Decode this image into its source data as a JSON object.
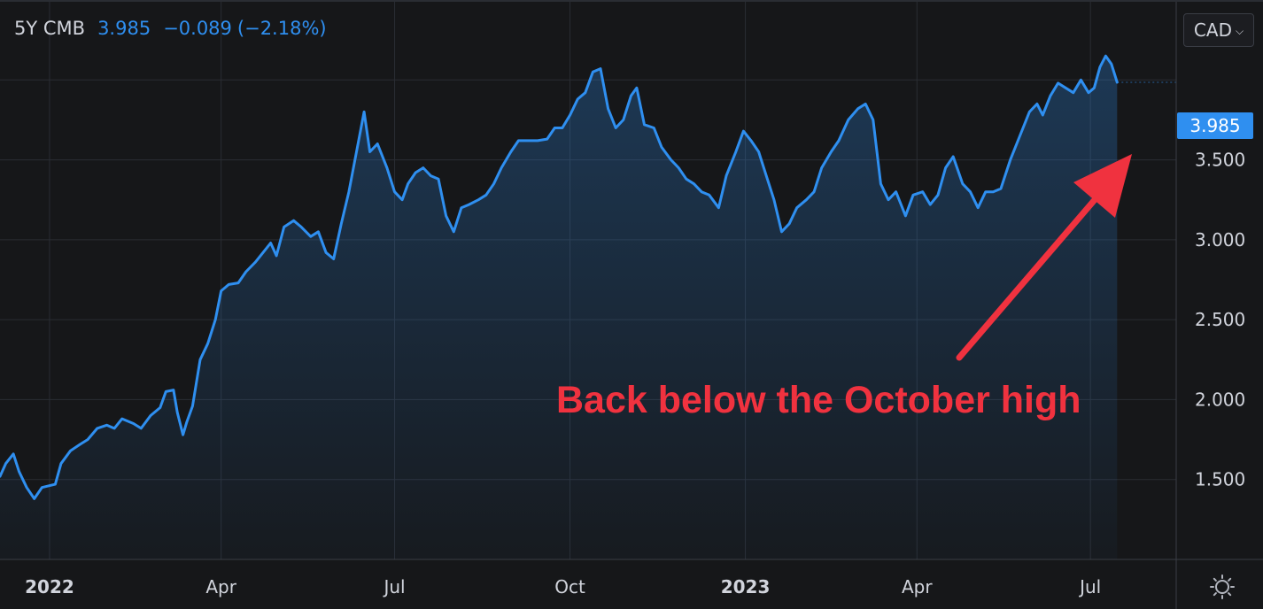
{
  "header": {
    "symbol": "5Y CMB",
    "last": "3.985",
    "change": "−0.089",
    "change_pct": "(−2.18%)"
  },
  "currency": {
    "label": "CAD",
    "chevron_icon": "chevron-down-icon"
  },
  "settings_icon": "sun-gear-icon",
  "price_tag": "3.985",
  "annotation": {
    "text": "Back below the October high",
    "color": "#f0323f"
  },
  "colors": {
    "line": "#2f8ff0",
    "background": "#161719",
    "grid": "#2a2d33",
    "text": "#d1d4dc"
  },
  "chart_data": {
    "type": "area",
    "title": "",
    "xlabel": "",
    "ylabel": "",
    "ylim": [
      1.0,
      4.5
    ],
    "xlim": [
      "2021-12-06",
      "2023-08-15"
    ],
    "grid": true,
    "x_ticks": [
      {
        "date": "2022-01-01",
        "label": "2022",
        "bold": true
      },
      {
        "date": "2022-04-01",
        "label": "Apr"
      },
      {
        "date": "2022-07-01",
        "label": "Jul"
      },
      {
        "date": "2022-10-01",
        "label": "Oct"
      },
      {
        "date": "2023-01-01",
        "label": "2023",
        "bold": true
      },
      {
        "date": "2023-04-01",
        "label": "Apr"
      },
      {
        "date": "2023-07-01",
        "label": "Jul"
      }
    ],
    "y_ticks": [
      {
        "value": 1.5,
        "label": "1.500"
      },
      {
        "value": 2.0,
        "label": "2.000"
      },
      {
        "value": 2.5,
        "label": "2.500"
      },
      {
        "value": 3.0,
        "label": "3.000"
      },
      {
        "value": 3.5,
        "label": "3.500"
      }
    ],
    "series": [
      {
        "name": "5Y CMB",
        "points": [
          [
            "2021-12-06",
            1.52
          ],
          [
            "2021-12-09",
            1.6
          ],
          [
            "2021-12-13",
            1.66
          ],
          [
            "2021-12-16",
            1.55
          ],
          [
            "2021-12-20",
            1.45
          ],
          [
            "2021-12-24",
            1.38
          ],
          [
            "2021-12-28",
            1.45
          ],
          [
            "2022-01-04",
            1.47
          ],
          [
            "2022-01-07",
            1.6
          ],
          [
            "2022-01-12",
            1.68
          ],
          [
            "2022-01-17",
            1.72
          ],
          [
            "2022-01-21",
            1.75
          ],
          [
            "2022-01-26",
            1.82
          ],
          [
            "2022-01-31",
            1.84
          ],
          [
            "2022-02-04",
            1.82
          ],
          [
            "2022-02-08",
            1.88
          ],
          [
            "2022-02-14",
            1.85
          ],
          [
            "2022-02-18",
            1.82
          ],
          [
            "2022-02-23",
            1.9
          ],
          [
            "2022-02-28",
            1.95
          ],
          [
            "2022-03-03",
            2.05
          ],
          [
            "2022-03-07",
            2.06
          ],
          [
            "2022-03-09",
            1.92
          ],
          [
            "2022-03-12",
            1.78
          ],
          [
            "2022-03-14",
            1.86
          ],
          [
            "2022-03-17",
            1.96
          ],
          [
            "2022-03-21",
            2.25
          ],
          [
            "2022-03-25",
            2.35
          ],
          [
            "2022-03-29",
            2.5
          ],
          [
            "2022-04-01",
            2.68
          ],
          [
            "2022-04-05",
            2.72
          ],
          [
            "2022-04-10",
            2.73
          ],
          [
            "2022-04-14",
            2.8
          ],
          [
            "2022-04-19",
            2.86
          ],
          [
            "2022-04-23",
            2.92
          ],
          [
            "2022-04-27",
            2.98
          ],
          [
            "2022-04-30",
            2.9
          ],
          [
            "2022-05-04",
            3.08
          ],
          [
            "2022-05-09",
            3.12
          ],
          [
            "2022-05-13",
            3.08
          ],
          [
            "2022-05-18",
            3.02
          ],
          [
            "2022-05-22",
            3.05
          ],
          [
            "2022-05-26",
            2.92
          ],
          [
            "2022-05-30",
            2.88
          ],
          [
            "2022-06-03",
            3.1
          ],
          [
            "2022-06-07",
            3.3
          ],
          [
            "2022-06-11",
            3.55
          ],
          [
            "2022-06-15",
            3.8
          ],
          [
            "2022-06-18",
            3.55
          ],
          [
            "2022-06-22",
            3.6
          ],
          [
            "2022-06-27",
            3.45
          ],
          [
            "2022-07-01",
            3.3
          ],
          [
            "2022-07-05",
            3.25
          ],
          [
            "2022-07-08",
            3.35
          ],
          [
            "2022-07-12",
            3.42
          ],
          [
            "2022-07-16",
            3.45
          ],
          [
            "2022-07-20",
            3.4
          ],
          [
            "2022-07-24",
            3.38
          ],
          [
            "2022-07-28",
            3.15
          ],
          [
            "2022-08-01",
            3.05
          ],
          [
            "2022-08-05",
            3.2
          ],
          [
            "2022-08-09",
            3.22
          ],
          [
            "2022-08-14",
            3.25
          ],
          [
            "2022-08-18",
            3.28
          ],
          [
            "2022-08-22",
            3.35
          ],
          [
            "2022-08-26",
            3.45
          ],
          [
            "2022-08-31",
            3.55
          ],
          [
            "2022-09-04",
            3.62
          ],
          [
            "2022-09-09",
            3.62
          ],
          [
            "2022-09-14",
            3.62
          ],
          [
            "2022-09-19",
            3.63
          ],
          [
            "2022-09-23",
            3.7
          ],
          [
            "2022-09-27",
            3.7
          ],
          [
            "2022-10-01",
            3.78
          ],
          [
            "2022-10-05",
            3.88
          ],
          [
            "2022-10-09",
            3.92
          ],
          [
            "2022-10-13",
            4.05
          ],
          [
            "2022-10-17",
            4.07
          ],
          [
            "2022-10-21",
            3.82
          ],
          [
            "2022-10-25",
            3.7
          ],
          [
            "2022-10-29",
            3.75
          ],
          [
            "2022-11-02",
            3.9
          ],
          [
            "2022-11-05",
            3.95
          ],
          [
            "2022-11-09",
            3.72
          ],
          [
            "2022-11-14",
            3.7
          ],
          [
            "2022-11-18",
            3.58
          ],
          [
            "2022-11-23",
            3.5
          ],
          [
            "2022-11-27",
            3.45
          ],
          [
            "2022-12-01",
            3.38
          ],
          [
            "2022-12-05",
            3.35
          ],
          [
            "2022-12-09",
            3.3
          ],
          [
            "2022-12-13",
            3.28
          ],
          [
            "2022-12-18",
            3.2
          ],
          [
            "2022-12-22",
            3.4
          ],
          [
            "2022-12-27",
            3.55
          ],
          [
            "2022-12-31",
            3.68
          ],
          [
            "2023-01-04",
            3.62
          ],
          [
            "2023-01-08",
            3.55
          ],
          [
            "2023-01-12",
            3.4
          ],
          [
            "2023-01-16",
            3.25
          ],
          [
            "2023-01-20",
            3.05
          ],
          [
            "2023-01-24",
            3.1
          ],
          [
            "2023-01-28",
            3.2
          ],
          [
            "2023-02-02",
            3.25
          ],
          [
            "2023-02-06",
            3.3
          ],
          [
            "2023-02-10",
            3.45
          ],
          [
            "2023-02-15",
            3.55
          ],
          [
            "2023-02-19",
            3.62
          ],
          [
            "2023-02-24",
            3.75
          ],
          [
            "2023-03-01",
            3.82
          ],
          [
            "2023-03-05",
            3.85
          ],
          [
            "2023-03-09",
            3.75
          ],
          [
            "2023-03-13",
            3.35
          ],
          [
            "2023-03-17",
            3.25
          ],
          [
            "2023-03-21",
            3.3
          ],
          [
            "2023-03-26",
            3.15
          ],
          [
            "2023-03-30",
            3.28
          ],
          [
            "2023-04-04",
            3.3
          ],
          [
            "2023-04-08",
            3.22
          ],
          [
            "2023-04-12",
            3.28
          ],
          [
            "2023-04-16",
            3.45
          ],
          [
            "2023-04-20",
            3.52
          ],
          [
            "2023-04-25",
            3.35
          ],
          [
            "2023-04-29",
            3.3
          ],
          [
            "2023-05-03",
            3.2
          ],
          [
            "2023-05-07",
            3.3
          ],
          [
            "2023-05-11",
            3.3
          ],
          [
            "2023-05-15",
            3.32
          ],
          [
            "2023-05-20",
            3.5
          ],
          [
            "2023-05-25",
            3.65
          ],
          [
            "2023-05-30",
            3.8
          ],
          [
            "2023-06-03",
            3.85
          ],
          [
            "2023-06-06",
            3.78
          ],
          [
            "2023-06-10",
            3.9
          ],
          [
            "2023-06-14",
            3.98
          ],
          [
            "2023-06-18",
            3.95
          ],
          [
            "2023-06-22",
            3.92
          ],
          [
            "2023-06-26",
            4.0
          ],
          [
            "2023-06-30",
            3.92
          ],
          [
            "2023-07-03",
            3.95
          ],
          [
            "2023-07-06",
            4.08
          ],
          [
            "2023-07-09",
            4.15
          ],
          [
            "2023-07-12",
            4.1
          ],
          [
            "2023-07-15",
            3.985
          ]
        ]
      }
    ],
    "last_value": 3.985,
    "legend": "top-left"
  }
}
